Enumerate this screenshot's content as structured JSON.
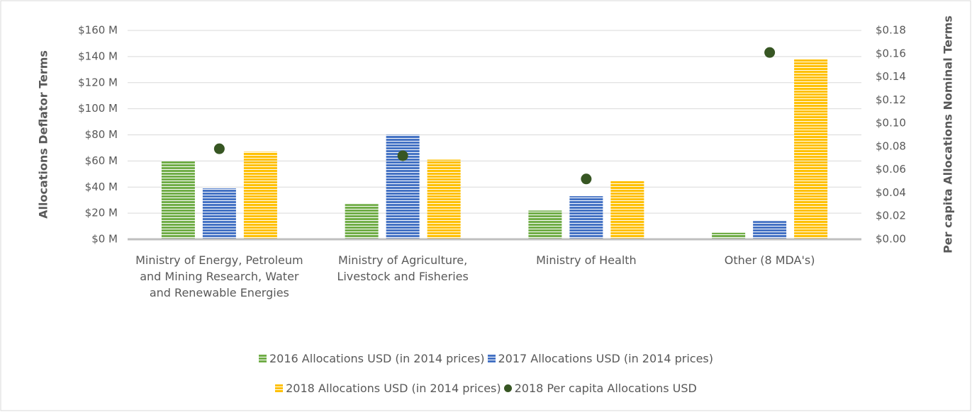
{
  "chart_data": {
    "type": "bar",
    "y_axis_label": "Allocations Deflator Terms",
    "y2_axis_label": "Per capita Allocations Nominal Terms",
    "categories": [
      "Ministry of Energy, Petroleum and Mining Research, Water and Renewable Energies",
      "Ministry of Agriculture, Livestock and Fisheries",
      "Ministry of Health",
      "Other (8 MDA's)"
    ],
    "series": [
      {
        "name": "2016 Allocations USD (in 2014 prices)",
        "color": "#70ad47",
        "values": [
          60,
          27,
          22,
          5
        ]
      },
      {
        "name": "2017 Allocations USD (in 2014 prices)",
        "color": "#4472c4",
        "values": [
          39,
          80,
          33,
          14
        ]
      },
      {
        "name": "2018 Allocations USD (in 2014 prices)",
        "color": "#ffc000",
        "values": [
          67,
          61,
          45,
          138
        ]
      },
      {
        "name": "2018 Per capita Allocations USD",
        "color": "#375623",
        "type": "scatter",
        "axis": "y2",
        "values": [
          0.078,
          0.072,
          0.052,
          0.161
        ]
      }
    ],
    "ylim": [
      0,
      160
    ],
    "yticks": [
      {
        "value": 0,
        "label": "$0 M"
      },
      {
        "value": 20,
        "label": "$20 M"
      },
      {
        "value": 40,
        "label": "$40 M"
      },
      {
        "value": 60,
        "label": "$60 M"
      },
      {
        "value": 80,
        "label": "$80 M"
      },
      {
        "value": 100,
        "label": "$100 M"
      },
      {
        "value": 120,
        "label": "$120 M"
      },
      {
        "value": 140,
        "label": "$140 M"
      },
      {
        "value": 160,
        "label": "$160 M"
      }
    ],
    "y2lim": [
      0,
      0.18
    ],
    "y2ticks": [
      {
        "value": 0,
        "label": "$0.00"
      },
      {
        "value": 0.02,
        "label": "$0.02"
      },
      {
        "value": 0.04,
        "label": "$0.04"
      },
      {
        "value": 0.06,
        "label": "$0.06"
      },
      {
        "value": 0.08,
        "label": "$0.08"
      },
      {
        "value": 0.1,
        "label": "$0.10"
      },
      {
        "value": 0.12,
        "label": "$0.12"
      },
      {
        "value": 0.14,
        "label": "$0.14"
      },
      {
        "value": 0.16,
        "label": "$0.16"
      },
      {
        "value": 0.18,
        "label": "$0.18"
      }
    ],
    "grid": true,
    "legend": "bottom"
  }
}
